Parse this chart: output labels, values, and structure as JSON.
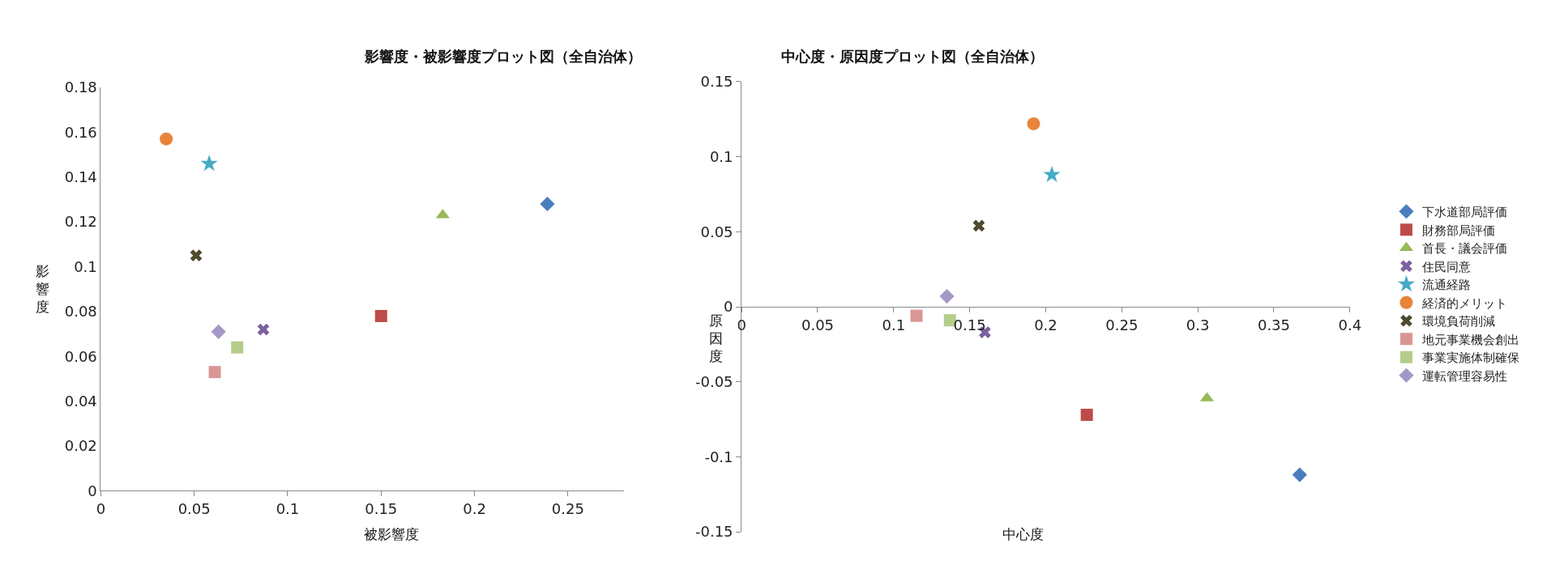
{
  "chart_data": [
    {
      "type": "scatter",
      "title": "影響度・被影響度プロット図（全自治体）",
      "xlabel": "被影響度",
      "ylabel": "影響度",
      "xlim": [
        0,
        0.28
      ],
      "xticks": [
        0,
        0.05,
        0.1,
        0.15,
        0.2,
        0.25
      ],
      "ylim": [
        0,
        0.18
      ],
      "yticks": [
        0,
        0.02,
        0.04,
        0.06,
        0.08,
        0.1,
        0.12,
        0.14,
        0.16,
        0.18
      ],
      "legend": false,
      "series": [
        {
          "color": "#4a7ebb",
          "marker": "diamond",
          "x": [
            0.239
          ],
          "values": [
            0.128
          ]
        },
        {
          "color": "#be4b48",
          "marker": "square",
          "x": [
            0.15
          ],
          "values": [
            0.078
          ]
        },
        {
          "color": "#98b954",
          "marker": "triangle",
          "x": [
            0.183
          ],
          "values": [
            0.123
          ]
        },
        {
          "color": "#7d60a0",
          "marker": "cross",
          "x": [
            0.087
          ],
          "values": [
            0.072
          ]
        },
        {
          "color": "#46aac5",
          "marker": "star",
          "x": [
            0.058
          ],
          "values": [
            0.146
          ]
        },
        {
          "color": "#e8843a",
          "marker": "circle",
          "x": [
            0.035
          ],
          "values": [
            0.157
          ]
        },
        {
          "color": "#4d4a2e",
          "marker": "cross",
          "x": [
            0.051
          ],
          "values": [
            0.105
          ]
        },
        {
          "color": "#d99694",
          "marker": "square",
          "x": [
            0.061
          ],
          "values": [
            0.053
          ]
        },
        {
          "color": "#b4cc8c",
          "marker": "square",
          "x": [
            0.073
          ],
          "values": [
            0.064
          ]
        },
        {
          "color": "#a598c6",
          "marker": "diamond",
          "x": [
            0.063
          ],
          "values": [
            0.071
          ]
        }
      ]
    },
    {
      "type": "scatter",
      "title": "中心度・原因度プロット図（全自治体）",
      "xlabel": "中心度",
      "ylabel": "原因度",
      "xlim": [
        0,
        0.4
      ],
      "xticks": [
        0,
        0.05,
        0.1,
        0.15,
        0.2,
        0.25,
        0.3,
        0.35,
        0.4
      ],
      "ylim": [
        -0.15,
        0.15
      ],
      "yticks": [
        -0.15,
        -0.1,
        -0.05,
        0,
        0.05,
        0.1,
        0.15
      ],
      "legend": "right",
      "series": [
        {
          "name": "下水道部局評価",
          "color": "#4a7ebb",
          "marker": "diamond",
          "x": [
            0.367
          ],
          "values": [
            -0.112
          ]
        },
        {
          "name": "財務部局評価",
          "color": "#be4b48",
          "marker": "square",
          "x": [
            0.227
          ],
          "values": [
            -0.072
          ]
        },
        {
          "name": "首長・議会評価",
          "color": "#98b954",
          "marker": "triangle",
          "x": [
            0.306
          ],
          "values": [
            -0.061
          ]
        },
        {
          "name": "住民同意",
          "color": "#7d60a0",
          "marker": "cross",
          "x": [
            0.16
          ],
          "values": [
            -0.017
          ]
        },
        {
          "name": "流通経路",
          "color": "#46aac5",
          "marker": "star",
          "x": [
            0.204
          ],
          "values": [
            0.088
          ]
        },
        {
          "name": "経済的メリット",
          "color": "#e8843a",
          "marker": "circle",
          "x": [
            0.192
          ],
          "values": [
            0.122
          ]
        },
        {
          "name": "環境負荷削減",
          "color": "#4d4a2e",
          "marker": "cross",
          "x": [
            0.156
          ],
          "values": [
            0.054
          ]
        },
        {
          "name": "地元事業機会創出",
          "color": "#d99694",
          "marker": "square",
          "x": [
            0.115
          ],
          "values": [
            -0.006
          ]
        },
        {
          "name": "事業実施体制確保",
          "color": "#b4cc8c",
          "marker": "square",
          "x": [
            0.137
          ],
          "values": [
            -0.009
          ]
        },
        {
          "name": "運転管理容易性",
          "color": "#a598c6",
          "marker": "diamond",
          "x": [
            0.135
          ],
          "values": [
            0.007
          ]
        }
      ]
    }
  ]
}
